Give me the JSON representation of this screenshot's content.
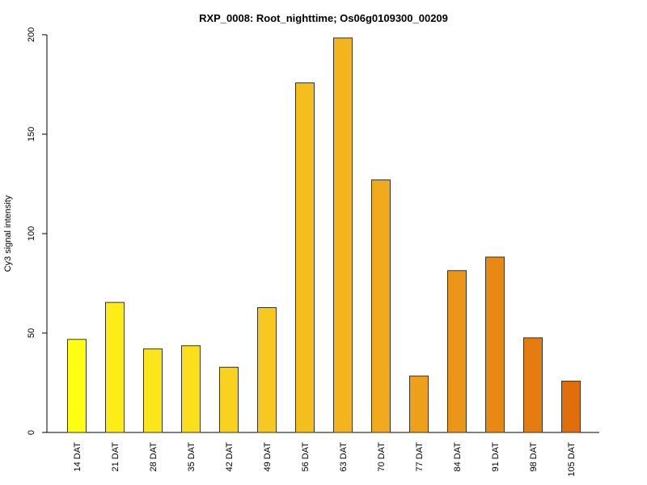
{
  "chart_data": {
    "type": "bar",
    "title": "RXP_0008: Root_nighttime; Os06g0109300_00209",
    "xlabel": "",
    "ylabel": "Cy3 signal intensity",
    "ylim": [
      0,
      200
    ],
    "yticks": [
      0,
      50,
      100,
      150,
      200
    ],
    "categories": [
      "14 DAT",
      "21 DAT",
      "28 DAT",
      "35 DAT",
      "42 DAT",
      "49 DAT",
      "56 DAT",
      "63 DAT",
      "70 DAT",
      "77 DAT",
      "84 DAT",
      "91 DAT",
      "98 DAT",
      "105 DAT"
    ],
    "values": [
      46.8,
      65.4,
      42.0,
      43.6,
      32.8,
      62.8,
      175.8,
      198.4,
      127.0,
      28.4,
      81.4,
      88.2,
      47.6,
      25.8
    ],
    "colors": [
      "#FFFF14",
      "#FDED17",
      "#FCE51A",
      "#FBDE1C",
      "#F9D21E",
      "#F7C81F",
      "#F5BE1F",
      "#F3B41E",
      "#F1AA1C",
      "#EFA01A",
      "#EC9617",
      "#E88913",
      "#E57C10",
      "#E06E0A"
    ],
    "grid": false,
    "legend": "none"
  }
}
